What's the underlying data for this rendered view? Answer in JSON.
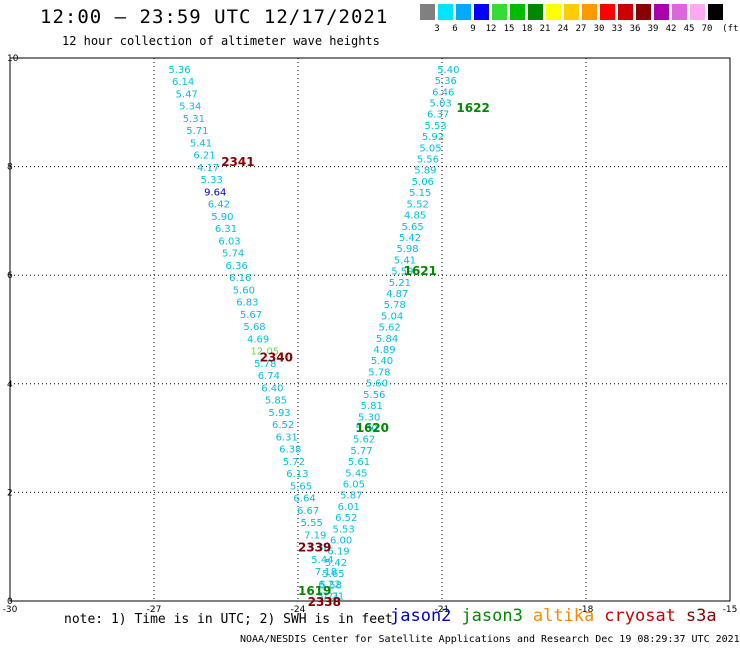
{
  "header": {
    "title": "12:00 – 23:59 UTC 12/17/2021",
    "subtitle": "12 hour collection of altimeter wave heights"
  },
  "legend": {
    "unit": "(ft)",
    "bins": [
      {
        "label": "3",
        "color": "#808080"
      },
      {
        "label": "6",
        "color": "#00e5ff"
      },
      {
        "label": "9",
        "color": "#00aaff"
      },
      {
        "label": "12",
        "color": "#0000ff"
      },
      {
        "label": "15",
        "color": "#33dd33"
      },
      {
        "label": "18",
        "color": "#00bb00"
      },
      {
        "label": "21",
        "color": "#008800"
      },
      {
        "label": "24",
        "color": "#ffff00"
      },
      {
        "label": "27",
        "color": "#ffcc00"
      },
      {
        "label": "30",
        "color": "#ff9900"
      },
      {
        "label": "33",
        "color": "#ff0000"
      },
      {
        "label": "36",
        "color": "#cc0000"
      },
      {
        "label": "39",
        "color": "#880000"
      },
      {
        "label": "42",
        "color": "#aa00aa"
      },
      {
        "label": "45",
        "color": "#dd66dd"
      },
      {
        "label": "70",
        "color": "#ffaaee"
      },
      {
        "label": "",
        "color": "#000000"
      }
    ]
  },
  "map": {
    "lon_range": [
      -30,
      -15
    ],
    "lat_range": [
      0,
      10
    ],
    "lon_ticks": [
      "-30",
      "-27",
      "-24",
      "-21",
      "-18",
      "-15"
    ],
    "lat_ticks": [
      "0",
      "2",
      "4",
      "6",
      "8",
      "10"
    ],
    "grid": true
  },
  "tracks": [
    {
      "id": "A",
      "color": "#00c0e0",
      "start": [
        -26.7,
        9.8
      ],
      "end": [
        -23.5,
        0.1
      ],
      "values": [
        "5.36",
        "6.14",
        "5.47",
        "5.34",
        "5.31",
        "5.71",
        "5.41",
        "6.21",
        "4.17",
        "5.33",
        "9.64",
        "6.42",
        "5.90",
        "6.31",
        "6.03",
        "5.74",
        "6.36",
        "6.16",
        "5.60",
        "6.83",
        "5.67",
        "5.68",
        "4.69",
        "12.05",
        "5.78",
        "6.74",
        "6.40",
        "5.85",
        "5.93",
        "6.52",
        "6.31",
        "6.38",
        "5.72",
        "6.13",
        "5.65",
        "6.64",
        "6.67",
        "5.55",
        "7.19",
        "5.30",
        "5.44",
        "7.18",
        "6.22",
        "7.21"
      ],
      "special": {
        "9": "#00c0e0",
        "10": "#0000cc",
        "23": "#66dd44"
      }
    },
    {
      "id": "B",
      "color": "#00c0e0",
      "start": [
        -21.1,
        9.8
      ],
      "end": [
        -23.6,
        0.1
      ],
      "values": [
        "5.40",
        "5.36",
        "6.46",
        "5.03",
        "6.37",
        "5.53",
        "5.92",
        "5.05",
        "5.56",
        "5.89",
        "5.06",
        "5.15",
        "5.52",
        "4.85",
        "5.65",
        "5.42",
        "5.98",
        "5.41",
        "5.59",
        "5.21",
        "4.87",
        "5.78",
        "5.04",
        "5.62",
        "5.84",
        "4.89",
        "5.40",
        "5.78",
        "5.60",
        "5.56",
        "5.81",
        "5.30",
        "5.30",
        "5.62",
        "5.77",
        "5.61",
        "5.45",
        "6.05",
        "5.87",
        "6.01",
        "6.52",
        "5.53",
        "6.00",
        "6.19",
        "5.42",
        "5.65",
        "5.58",
        "5.21"
      ],
      "special": {}
    }
  ],
  "pass_labels": [
    {
      "text": "2341",
      "lon": -25.6,
      "lat": 8.1,
      "color": "#880000"
    },
    {
      "text": "2340",
      "lon": -24.8,
      "lat": 4.5,
      "color": "#880000"
    },
    {
      "text": "2339",
      "lon": -24.0,
      "lat": 1.0,
      "color": "#880000"
    },
    {
      "text": "2338",
      "lon": -23.8,
      "lat": 0.0,
      "color": "#880000"
    },
    {
      "text": "1622",
      "lon": -20.7,
      "lat": 9.1,
      "color": "#008800"
    },
    {
      "text": "1621",
      "lon": -21.8,
      "lat": 6.1,
      "color": "#008800"
    },
    {
      "text": "1620",
      "lon": -22.8,
      "lat": 3.2,
      "color": "#008800"
    },
    {
      "text": "1619",
      "lon": -24.0,
      "lat": 0.2,
      "color": "#008800"
    }
  ],
  "note": "note: 1) Time is in UTC; 2) SWH is in feet",
  "satellites": [
    {
      "name": "jason2",
      "color": "#0000cc"
    },
    {
      "name": "jason3",
      "color": "#008800"
    },
    {
      "name": "altika",
      "color": "#ff8800"
    },
    {
      "name": "cryosat",
      "color": "#cc0000"
    },
    {
      "name": "s3a",
      "color": "#880000"
    }
  ],
  "footer": "NOAA/NESDIS Center for Satellite Applications and Research   Dec 19 08:29:37 UTC 2021"
}
